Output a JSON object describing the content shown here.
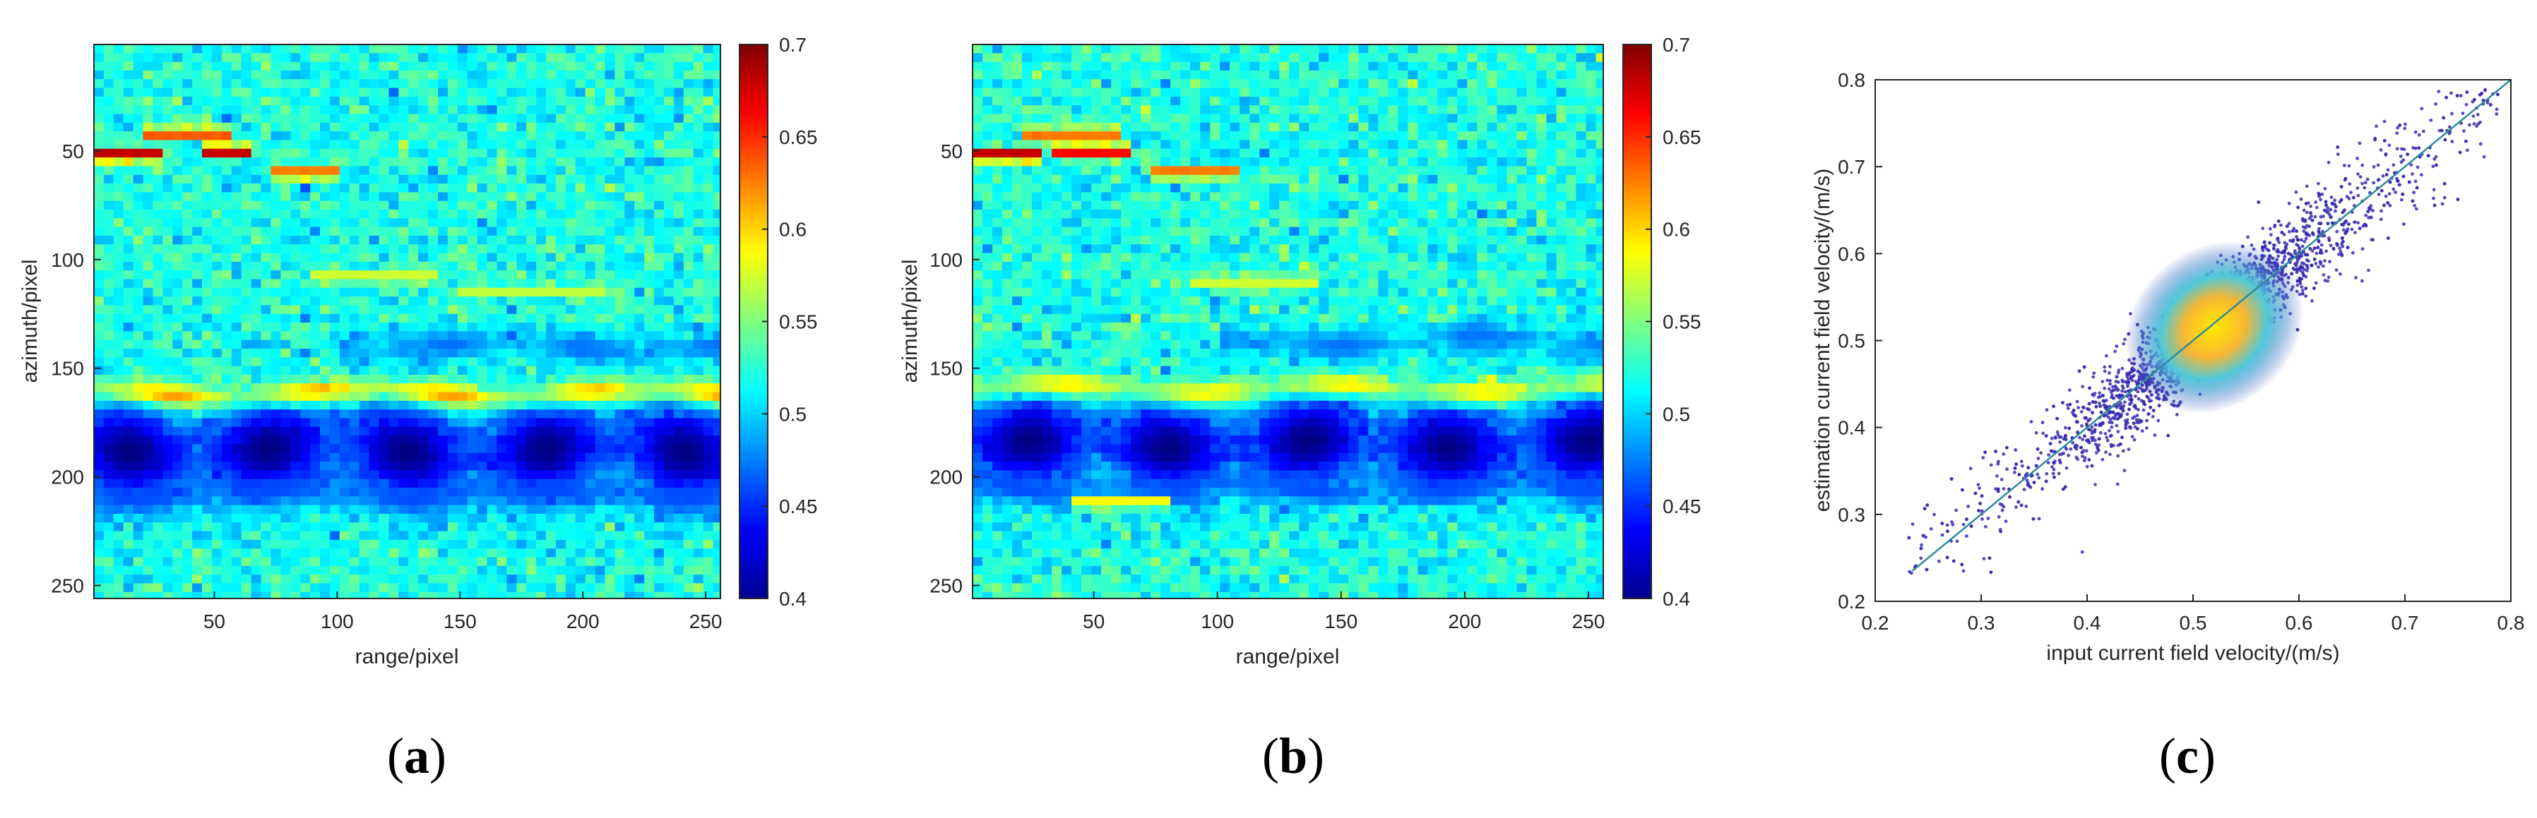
{
  "panels": [
    {
      "label_open": "(",
      "label_letter": "a",
      "label_close": ")"
    },
    {
      "label_open": "(",
      "label_letter": "b",
      "label_close": ")"
    },
    {
      "label_open": "(",
      "label_letter": "c",
      "label_close": ")"
    }
  ],
  "chart_data": [
    {
      "type": "heatmap",
      "xlabel": "range/pixel",
      "ylabel": "azimuth/pixel",
      "xlim": [
        1,
        256
      ],
      "ylim": [
        1,
        256
      ],
      "y_reversed": true,
      "x_ticks": [
        50,
        100,
        150,
        200,
        250
      ],
      "y_ticks": [
        50,
        100,
        150,
        200,
        250
      ],
      "colormap": "jet",
      "clim": [
        0.4,
        0.7
      ],
      "colorbar_ticks": [
        0.4,
        0.45,
        0.5,
        0.55,
        0.6,
        0.65,
        0.7
      ],
      "background_value": 0.52,
      "features": [
        {
          "kind": "band",
          "y": 162,
          "value": 0.66,
          "thickness": 4,
          "x_from": 1,
          "x_to": 256
        },
        {
          "kind": "band",
          "y": 188,
          "value": 0.4,
          "thickness": 16,
          "x_from": 1,
          "x_to": 256
        },
        {
          "kind": "band",
          "y": 208,
          "value": 0.46,
          "thickness": 4,
          "x_from": 1,
          "x_to": 256
        },
        {
          "kind": "band",
          "y": 140,
          "value": 0.47,
          "thickness": 5,
          "x_from": 100,
          "x_to": 256
        },
        {
          "kind": "streak",
          "y": 52,
          "value": 0.7,
          "x_from": 1,
          "x_to": 30
        },
        {
          "kind": "streak",
          "y": 50,
          "value": 0.7,
          "x_from": 45,
          "x_to": 65
        },
        {
          "kind": "streak",
          "y": 60,
          "value": 0.64,
          "x_from": 75,
          "x_to": 100
        },
        {
          "kind": "streak",
          "y": 42,
          "value": 0.65,
          "x_from": 20,
          "x_to": 55
        },
        {
          "kind": "streak",
          "y": 108,
          "value": 0.58,
          "x_from": 90,
          "x_to": 140
        },
        {
          "kind": "streak",
          "y": 115,
          "value": 0.57,
          "x_from": 150,
          "x_to": 210
        }
      ]
    },
    {
      "type": "heatmap",
      "xlabel": "range/pixel",
      "ylabel": "azimuth/pixel",
      "xlim": [
        1,
        256
      ],
      "ylim": [
        1,
        256
      ],
      "y_reversed": true,
      "x_ticks": [
        50,
        100,
        150,
        200,
        250
      ],
      "y_ticks": [
        50,
        100,
        150,
        200,
        250
      ],
      "colormap": "jet",
      "clim": [
        0.4,
        0.7
      ],
      "colorbar_ticks": [
        0.4,
        0.45,
        0.5,
        0.55,
        0.6,
        0.65,
        0.7
      ],
      "background_value": 0.52,
      "features": [
        {
          "kind": "band",
          "y": 160,
          "value": 0.64,
          "thickness": 4,
          "x_from": 1,
          "x_to": 256
        },
        {
          "kind": "band",
          "y": 185,
          "value": 0.4,
          "thickness": 15,
          "x_from": 1,
          "x_to": 256
        },
        {
          "kind": "band",
          "y": 206,
          "value": 0.46,
          "thickness": 4,
          "x_from": 1,
          "x_to": 256
        },
        {
          "kind": "band",
          "y": 138,
          "value": 0.47,
          "thickness": 5,
          "x_from": 100,
          "x_to": 256
        },
        {
          "kind": "streak",
          "y": 52,
          "value": 0.7,
          "x_from": 1,
          "x_to": 30
        },
        {
          "kind": "streak",
          "y": 50,
          "value": 0.68,
          "x_from": 35,
          "x_to": 65
        },
        {
          "kind": "streak",
          "y": 60,
          "value": 0.64,
          "x_from": 75,
          "x_to": 110
        },
        {
          "kind": "streak",
          "y": 42,
          "value": 0.64,
          "x_from": 20,
          "x_to": 60
        },
        {
          "kind": "streak",
          "y": 110,
          "value": 0.58,
          "x_from": 90,
          "x_to": 140
        },
        {
          "kind": "streak",
          "y": 212,
          "value": 0.6,
          "x_from": 40,
          "x_to": 80
        }
      ]
    },
    {
      "type": "scatter",
      "xlabel": "input current field velocity/(m/s)",
      "ylabel": "estimation current field velocity/(m/s)",
      "xlim": [
        0.2,
        0.8
      ],
      "ylim": [
        0.2,
        0.8
      ],
      "x_ticks": [
        0.2,
        0.3,
        0.4,
        0.5,
        0.6,
        0.7,
        0.8
      ],
      "y_ticks": [
        0.2,
        0.3,
        0.4,
        0.5,
        0.6,
        0.7,
        0.8
      ],
      "density_colored": true,
      "density_peak": [
        0.52,
        0.515
      ],
      "fit_line": {
        "x": [
          0.235,
          0.8
        ],
        "y": [
          0.235,
          0.8
        ]
      },
      "point_range": [
        0.23,
        0.79
      ],
      "point_color": "#3a2bb0",
      "line_color": "#2e8b9a"
    }
  ]
}
